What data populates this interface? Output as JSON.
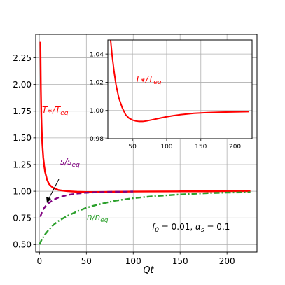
{
  "chart_data": [
    {
      "panel": "main",
      "type": "line",
      "xlabel": "Qt",
      "ylabel": "",
      "xlim": [
        -4,
        232
      ],
      "ylim": [
        0.43,
        2.47
      ],
      "xticks": [
        0,
        50,
        100,
        150,
        200
      ],
      "yticks": [
        0.5,
        0.75,
        1.0,
        1.25,
        1.5,
        1.75,
        2.0,
        2.25
      ],
      "grid": true,
      "annotation": "f_0 = 0.01, α_s = 0.1",
      "series": [
        {
          "name": "T*/Teq",
          "color": "#ff0000",
          "style": "solid",
          "x": [
            1,
            1.5,
            2,
            2.5,
            3,
            4,
            5,
            6,
            8,
            10,
            12,
            15,
            20,
            25,
            30,
            40,
            50,
            60,
            70,
            80,
            100,
            120,
            150,
            180,
            200,
            225
          ],
          "y": [
            2.4,
            1.95,
            1.7,
            1.55,
            1.45,
            1.32,
            1.24,
            1.18,
            1.11,
            1.07,
            1.05,
            1.03,
            1.012,
            1.005,
            1.0,
            0.995,
            0.993,
            0.993,
            0.994,
            0.995,
            0.997,
            0.998,
            0.999,
            0.999,
            1.0,
            1.0
          ]
        },
        {
          "name": "s/s_eq",
          "color": "#800080",
          "style": "dashed",
          "x": [
            1,
            2,
            4,
            6,
            8,
            10,
            15,
            20,
            30,
            40,
            50,
            60,
            70,
            80,
            100
          ],
          "y": [
            0.76,
            0.79,
            0.83,
            0.855,
            0.875,
            0.89,
            0.92,
            0.94,
            0.965,
            0.978,
            0.986,
            0.99,
            0.993,
            0.995,
            0.997
          ]
        },
        {
          "name": "n/n_eq",
          "color": "#2ca02c",
          "style": "dashdot",
          "x": [
            0,
            2,
            5,
            10,
            15,
            20,
            30,
            40,
            50,
            60,
            80,
            100,
            120,
            150,
            180,
            200,
            225
          ],
          "y": [
            0.5,
            0.54,
            0.585,
            0.64,
            0.685,
            0.72,
            0.77,
            0.81,
            0.845,
            0.87,
            0.91,
            0.935,
            0.952,
            0.97,
            0.982,
            0.987,
            0.99
          ]
        }
      ]
    },
    {
      "panel": "inset",
      "type": "line",
      "xlim": [
        14,
        225
      ],
      "ylim": [
        0.98,
        1.05
      ],
      "xticks": [
        50,
        100,
        150,
        200
      ],
      "yticks": [
        0.98,
        1.0,
        1.02,
        1.04
      ],
      "grid": true,
      "series": [
        {
          "name": "T*/Teq",
          "color": "#ff0000",
          "style": "solid",
          "x": [
            18,
            20,
            23,
            26,
            30,
            35,
            40,
            45,
            50,
            55,
            60,
            65,
            70,
            80,
            90,
            100,
            110,
            120,
            140,
            160,
            180,
            200,
            220
          ],
          "y": [
            1.05,
            1.04,
            1.028,
            1.018,
            1.009,
            1.002,
            0.997,
            0.9945,
            0.9932,
            0.9925,
            0.9922,
            0.9922,
            0.9925,
            0.9935,
            0.9945,
            0.9955,
            0.9963,
            0.997,
            0.998,
            0.9985,
            0.9988,
            0.999,
            0.9992
          ]
        }
      ]
    }
  ],
  "labels": {
    "xlabel": "Qt",
    "T_label_main": "T*/Teq",
    "T_label_inset": "T*/Teq",
    "s_label": "s/s_eq",
    "n_label": "n/n_eq",
    "annotation": "f_0 = 0.01, α_s = 0.1"
  }
}
